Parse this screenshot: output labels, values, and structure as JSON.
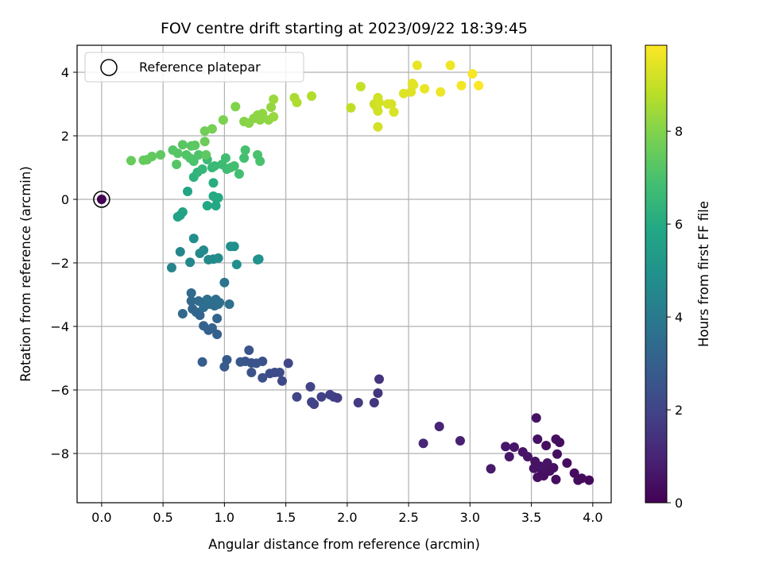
{
  "chart_data": {
    "type": "scatter",
    "title": "FOV centre drift starting at 2023/09/22 18:39:45",
    "xlabel": "Angular distance from reference (arcmin)",
    "ylabel": "Rotation from reference (arcmin)",
    "xlim": [
      -0.2,
      4.15
    ],
    "ylim": [
      -9.55,
      4.85
    ],
    "xticks": [
      0.0,
      0.5,
      1.0,
      1.5,
      2.0,
      2.5,
      3.0,
      3.5,
      4.0
    ],
    "xtick_labels": [
      "0.0",
      "0.5",
      "1.0",
      "1.5",
      "2.0",
      "2.5",
      "3.0",
      "3.5",
      "4.0"
    ],
    "yticks": [
      -8,
      -6,
      -4,
      -2,
      0,
      2,
      4
    ],
    "ytick_labels": [
      "−8",
      "−6",
      "−4",
      "−2",
      "0",
      "2",
      "4"
    ],
    "grid": true,
    "legend": {
      "placement": "upper-left",
      "entries": [
        "Reference platepar"
      ]
    },
    "colormap": "viridis",
    "colorbar": {
      "label": "Hours from first FF file",
      "range": [
        0,
        9.85
      ],
      "ticks": [
        0,
        2,
        4,
        6,
        8
      ],
      "tick_labels": [
        "0",
        "2",
        "4",
        "6",
        "8"
      ]
    },
    "reference_point": {
      "x": 0.0,
      "y": 0.0,
      "hours": 0.0
    },
    "points": [
      [
        3.54,
        -6.88,
        0.45
      ],
      [
        3.55,
        -7.55,
        0.45
      ],
      [
        3.62,
        -7.75,
        0.4
      ],
      [
        3.7,
        -7.55,
        0.45
      ],
      [
        3.73,
        -7.65,
        0.35
      ],
      [
        3.71,
        -8.02,
        0.4
      ],
      [
        3.79,
        -8.3,
        0.35
      ],
      [
        3.85,
        -8.62,
        0.3
      ],
      [
        3.88,
        -8.84,
        0.3
      ],
      [
        3.91,
        -8.78,
        0.3
      ],
      [
        3.97,
        -8.84,
        0.25
      ],
      [
        3.7,
        -8.82,
        0.35
      ],
      [
        3.55,
        -8.75,
        0.4
      ],
      [
        3.6,
        -8.7,
        0.4
      ],
      [
        3.62,
        -8.58,
        0.4
      ],
      [
        3.65,
        -8.55,
        0.45
      ],
      [
        3.58,
        -8.5,
        0.45
      ],
      [
        3.52,
        -8.47,
        0.5
      ],
      [
        3.57,
        -8.4,
        0.5
      ],
      [
        3.63,
        -8.3,
        0.5
      ],
      [
        3.68,
        -8.45,
        0.45
      ],
      [
        3.53,
        -8.25,
        0.5
      ],
      [
        3.47,
        -8.1,
        0.55
      ],
      [
        3.43,
        -7.95,
        0.55
      ],
      [
        3.36,
        -7.8,
        0.6
      ],
      [
        3.29,
        -7.78,
        0.6
      ],
      [
        3.32,
        -8.1,
        0.6
      ],
      [
        3.17,
        -8.48,
        0.7
      ],
      [
        2.92,
        -7.6,
        0.9
      ],
      [
        2.75,
        -7.15,
        1.0
      ],
      [
        2.62,
        -7.68,
        1.1
      ],
      [
        2.26,
        -5.66,
        1.5
      ],
      [
        2.25,
        -6.1,
        1.5
      ],
      [
        2.22,
        -6.4,
        1.55
      ],
      [
        2.09,
        -6.4,
        1.65
      ],
      [
        1.89,
        -6.22,
        1.8
      ],
      [
        1.92,
        -6.25,
        1.8
      ],
      [
        1.86,
        -6.15,
        1.85
      ],
      [
        1.79,
        -6.22,
        1.9
      ],
      [
        1.73,
        -6.45,
        1.95
      ],
      [
        1.71,
        -6.38,
        1.95
      ],
      [
        1.7,
        -5.9,
        2.0
      ],
      [
        1.59,
        -6.22,
        2.05
      ],
      [
        1.52,
        -5.16,
        2.15
      ],
      [
        1.47,
        -5.72,
        2.2
      ],
      [
        1.45,
        -5.45,
        2.25
      ],
      [
        1.41,
        -5.45,
        2.3
      ],
      [
        1.37,
        -5.48,
        2.3
      ],
      [
        1.31,
        -5.62,
        2.4
      ],
      [
        1.31,
        -5.1,
        2.45
      ],
      [
        1.26,
        -5.16,
        2.5
      ],
      [
        1.22,
        -5.45,
        2.5
      ],
      [
        1.22,
        -5.15,
        2.55
      ],
      [
        1.2,
        -4.75,
        2.6
      ],
      [
        1.17,
        -5.1,
        2.6
      ],
      [
        1.13,
        -5.12,
        2.65
      ],
      [
        1.02,
        -5.05,
        2.75
      ],
      [
        1.0,
        -5.27,
        2.8
      ],
      [
        0.82,
        -5.12,
        2.9
      ],
      [
        0.94,
        -4.25,
        3.0
      ],
      [
        0.9,
        -4.05,
        3.05
      ],
      [
        0.87,
        -4.12,
        3.05
      ],
      [
        0.83,
        -3.98,
        3.1
      ],
      [
        0.94,
        -3.75,
        3.15
      ],
      [
        0.8,
        -3.65,
        3.15
      ],
      [
        0.77,
        -3.55,
        3.2
      ],
      [
        0.74,
        -3.45,
        3.25
      ],
      [
        0.66,
        -3.6,
        3.3
      ],
      [
        0.73,
        -3.2,
        3.35
      ],
      [
        0.73,
        -2.95,
        3.4
      ],
      [
        0.79,
        -3.2,
        3.45
      ],
      [
        0.85,
        -3.2,
        3.45
      ],
      [
        0.88,
        -3.3,
        3.45
      ],
      [
        0.91,
        -3.25,
        3.5
      ],
      [
        0.92,
        -3.35,
        3.5
      ],
      [
        0.95,
        -3.3,
        3.55
      ],
      [
        0.83,
        -3.4,
        3.55
      ],
      [
        0.86,
        -3.15,
        3.6
      ],
      [
        0.93,
        -3.15,
        3.6
      ],
      [
        0.96,
        -3.25,
        3.6
      ],
      [
        1.04,
        -3.3,
        3.65
      ],
      [
        1.0,
        -2.62,
        3.8
      ],
      [
        0.57,
        -2.15,
        4.4
      ],
      [
        0.64,
        -1.65,
        4.5
      ],
      [
        0.72,
        -1.98,
        4.55
      ],
      [
        0.8,
        -1.7,
        4.6
      ],
      [
        0.83,
        -1.6,
        4.65
      ],
      [
        0.87,
        -1.9,
        4.7
      ],
      [
        0.91,
        -1.88,
        4.7
      ],
      [
        0.95,
        -1.85,
        4.75
      ],
      [
        0.75,
        -1.23,
        4.8
      ],
      [
        1.05,
        -1.48,
        4.85
      ],
      [
        1.08,
        -1.48,
        4.9
      ],
      [
        1.1,
        -2.05,
        4.9
      ],
      [
        1.28,
        -1.88,
        4.95
      ],
      [
        1.27,
        -1.9,
        4.95
      ],
      [
        0.62,
        -0.55,
        5.6
      ],
      [
        0.64,
        -0.5,
        5.65
      ],
      [
        0.66,
        -0.4,
        5.7
      ],
      [
        0.7,
        0.25,
        5.8
      ],
      [
        0.86,
        -0.2,
        5.85
      ],
      [
        0.93,
        -0.2,
        5.9
      ],
      [
        0.93,
        0.05,
        5.95
      ],
      [
        0.95,
        0.05,
        6.0
      ],
      [
        0.91,
        0.1,
        6.0
      ],
      [
        0.91,
        0.52,
        6.1
      ],
      [
        0.75,
        0.7,
        6.3
      ],
      [
        0.78,
        0.85,
        6.4
      ],
      [
        0.82,
        0.95,
        6.5
      ],
      [
        0.9,
        1.0,
        6.55
      ],
      [
        0.92,
        1.05,
        6.6
      ],
      [
        0.86,
        1.25,
        6.65
      ],
      [
        0.98,
        1.1,
        6.7
      ],
      [
        1.02,
        0.95,
        6.75
      ],
      [
        1.01,
        1.3,
        6.8
      ],
      [
        1.05,
        1.0,
        6.8
      ],
      [
        1.08,
        1.05,
        6.85
      ],
      [
        1.12,
        0.8,
        6.85
      ],
      [
        1.16,
        1.3,
        6.9
      ],
      [
        1.17,
        1.55,
        6.95
      ],
      [
        1.27,
        1.4,
        7.0
      ],
      [
        1.29,
        1.2,
        7.0
      ],
      [
        0.75,
        1.2,
        7.05
      ],
      [
        0.72,
        1.3,
        7.1
      ],
      [
        0.79,
        1.4,
        7.1
      ],
      [
        0.69,
        1.4,
        7.15
      ],
      [
        0.61,
        1.1,
        7.2
      ],
      [
        0.58,
        1.55,
        7.2
      ],
      [
        0.62,
        1.45,
        7.25
      ],
      [
        0.66,
        1.72,
        7.3
      ],
      [
        0.73,
        1.68,
        7.3
      ],
      [
        0.76,
        1.7,
        7.35
      ],
      [
        0.85,
        1.4,
        7.4
      ],
      [
        0.48,
        1.4,
        7.4
      ],
      [
        0.41,
        1.35,
        7.45
      ],
      [
        0.37,
        1.25,
        7.45
      ],
      [
        0.34,
        1.23,
        7.5
      ],
      [
        0.24,
        1.22,
        7.55
      ],
      [
        0.84,
        1.82,
        7.6
      ],
      [
        0.84,
        2.15,
        7.7
      ],
      [
        0.9,
        2.22,
        7.8
      ],
      [
        0.99,
        2.5,
        7.9
      ],
      [
        1.09,
        2.92,
        8.0
      ],
      [
        1.16,
        2.45,
        8.05
      ],
      [
        1.2,
        2.4,
        8.1
      ],
      [
        1.24,
        2.55,
        8.1
      ],
      [
        1.27,
        2.65,
        8.15
      ],
      [
        1.29,
        2.5,
        8.15
      ],
      [
        1.31,
        2.7,
        8.2
      ],
      [
        1.36,
        2.5,
        8.2
      ],
      [
        1.38,
        2.9,
        8.25
      ],
      [
        1.4,
        2.6,
        8.3
      ],
      [
        1.4,
        3.15,
        8.35
      ],
      [
        1.57,
        3.2,
        8.6
      ],
      [
        1.59,
        3.05,
        8.65
      ],
      [
        1.71,
        3.25,
        8.7
      ],
      [
        2.03,
        2.88,
        8.9
      ],
      [
        2.11,
        3.55,
        9.0
      ],
      [
        2.22,
        3.0,
        9.1
      ],
      [
        2.24,
        2.9,
        9.1
      ],
      [
        2.25,
        3.2,
        9.15
      ],
      [
        2.25,
        2.78,
        9.15
      ],
      [
        2.26,
        3.05,
        9.2
      ],
      [
        2.25,
        2.28,
        9.2
      ],
      [
        2.33,
        3.0,
        9.25
      ],
      [
        2.36,
        3.0,
        9.25
      ],
      [
        2.38,
        2.75,
        9.3
      ],
      [
        2.46,
        3.33,
        9.35
      ],
      [
        2.52,
        3.38,
        9.4
      ],
      [
        2.53,
        3.65,
        9.45
      ],
      [
        2.54,
        3.6,
        9.45
      ],
      [
        2.57,
        4.22,
        9.5
      ],
      [
        2.63,
        3.48,
        9.55
      ],
      [
        2.76,
        3.38,
        9.6
      ],
      [
        2.84,
        4.22,
        9.65
      ],
      [
        2.93,
        3.58,
        9.7
      ],
      [
        3.02,
        3.95,
        9.75
      ],
      [
        3.07,
        3.58,
        9.8
      ]
    ]
  }
}
